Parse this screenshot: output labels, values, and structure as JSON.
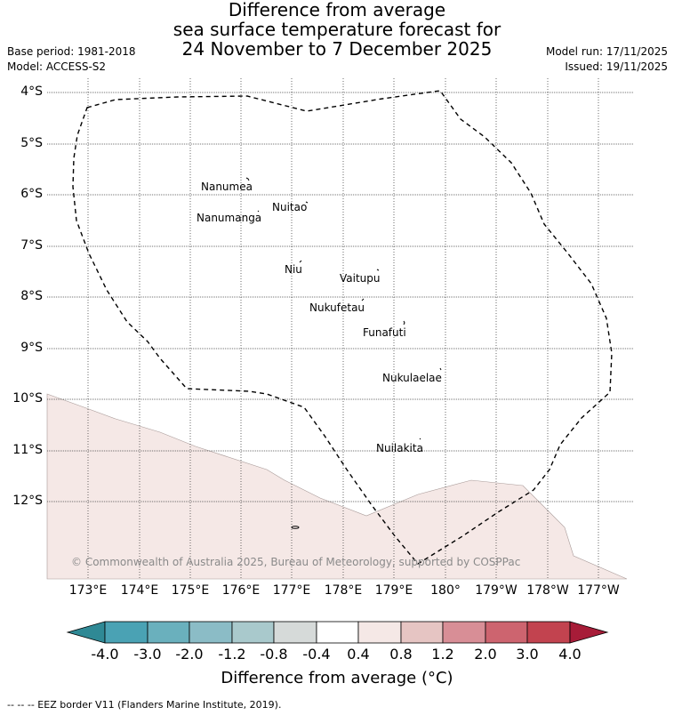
{
  "title": {
    "line1": "Difference from average",
    "line2": "sea surface temperature forecast for",
    "line3": "24 November to 7 December 2025"
  },
  "meta_left": {
    "base_period": "Base period: 1981-2018",
    "model": "Model: ACCESS-S2"
  },
  "meta_right": {
    "model_run": "Model run: 17/11/2025",
    "issued": "Issued: 19/11/2025"
  },
  "lat_labels": [
    "4°S",
    "5°S",
    "6°S",
    "7°S",
    "8°S",
    "9°S",
    "10°S",
    "11°S",
    "12°S"
  ],
  "lon_labels": [
    "173°E",
    "174°E",
    "175°E",
    "176°E",
    "177°E",
    "178°E",
    "179°E",
    "180°",
    "179°W",
    "178°W",
    "177°W"
  ],
  "islands": [
    "Nanumea",
    "Nuitao",
    "Nanumanga",
    "Niu",
    "Vaitupu",
    "Nukufetau",
    "Funafuti",
    "Nukulaelae",
    "Nuilakita"
  ],
  "copyright": "© Commonwealth of Australia 2025, Bureau of Meteorology, supported by COSPPac",
  "colorbar": {
    "ticks": [
      "-4.0",
      "-3.0",
      "-2.0",
      "-1.2",
      "-0.8",
      "-0.4",
      "0.4",
      "0.8",
      "1.2",
      "2.0",
      "3.0",
      "4.0"
    ],
    "colors": [
      "#2f8995",
      "#4aa2b4",
      "#6ab0bd",
      "#8bbcc6",
      "#a9c9cc",
      "#d6dad9",
      "#ffffff",
      "#f5e8e6",
      "#e6c5c3",
      "#d88e96",
      "#cd646f",
      "#c2434f",
      "#a71c38"
    ],
    "title": "Difference from average ($^\\circ$C)",
    "title_display": "Difference from average (°C)"
  },
  "anomaly_fill_color": "#f5e8e6",
  "footnote": "--  --  -- EEZ border V11 (Flanders Marine Institute, 2019)."
}
